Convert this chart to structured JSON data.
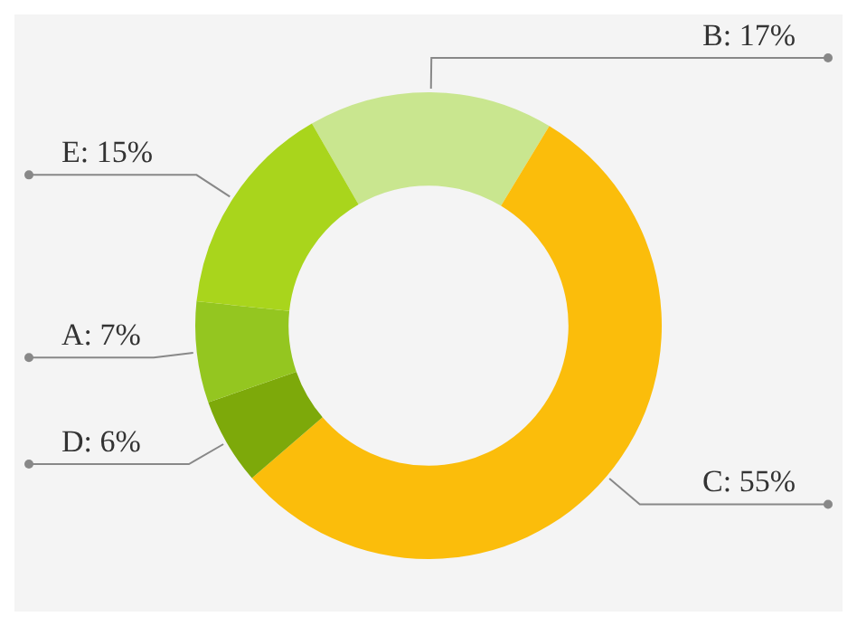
{
  "chart_data": {
    "type": "donut",
    "categories": [
      "B",
      "C",
      "D",
      "A",
      "E"
    ],
    "values": [
      17,
      55,
      6,
      7,
      15
    ],
    "colors": [
      "#c9e68f",
      "#fbbd0b",
      "#7da90a",
      "#94c620",
      "#a9d51c"
    ],
    "value_labels": [
      "17%",
      "55%",
      "6%",
      "7%",
      "15%"
    ],
    "legend": false
  }
}
